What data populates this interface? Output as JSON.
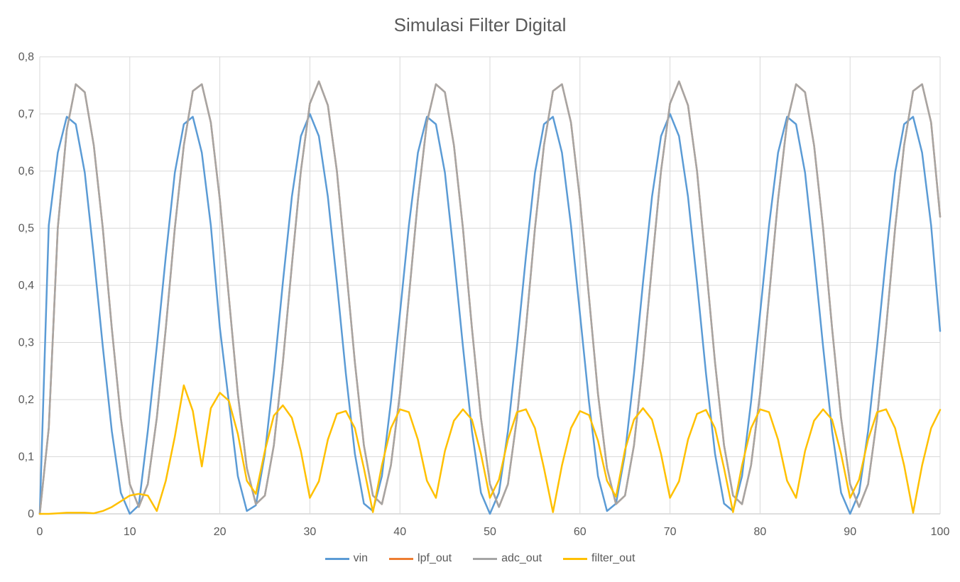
{
  "chart_data": {
    "type": "line",
    "title": "Simulasi Filter Digital",
    "xlabel": "",
    "ylabel": "",
    "xlim": [
      0,
      100
    ],
    "ylim": [
      0,
      0.8
    ],
    "x_ticks": [
      "0",
      "10",
      "20",
      "30",
      "40",
      "50",
      "60",
      "70",
      "80",
      "90",
      "100"
    ],
    "y_ticks": [
      "0",
      "0,1",
      "0,2",
      "0,3",
      "0,4",
      "0,5",
      "0,6",
      "0,7",
      "0,8"
    ],
    "grid": true,
    "legend_position": "bottom",
    "series": [
      {
        "name": "vin",
        "color": "#5B9BD5",
        "values": [
          0,
          0.505,
          0.632,
          0.695,
          0.682,
          0.597,
          0.451,
          0.293,
          0.145,
          0.037,
          0.0,
          0.015,
          0.145,
          0.293,
          0.451,
          0.597,
          0.682,
          0.695,
          0.632,
          0.505,
          0.326,
          0.196,
          0.066,
          0.005,
          0.015,
          0.105,
          0.245,
          0.405,
          0.555,
          0.661,
          0.7,
          0.661,
          0.555,
          0.405,
          0.245,
          0.105,
          0.018,
          0.005,
          0.066,
          0.196,
          0.35,
          0.505,
          0.632,
          0.695,
          0.682,
          0.597,
          0.451,
          0.293,
          0.145,
          0.037,
          0.0,
          0.037,
          0.145,
          0.293,
          0.451,
          0.597,
          0.682,
          0.695,
          0.632,
          0.505,
          0.35,
          0.196,
          0.066,
          0.005,
          0.018,
          0.105,
          0.245,
          0.405,
          0.555,
          0.661,
          0.7,
          0.661,
          0.555,
          0.405,
          0.245,
          0.105,
          0.018,
          0.005,
          0.066,
          0.196,
          0.35,
          0.505,
          0.632,
          0.695,
          0.682,
          0.597,
          0.451,
          0.293,
          0.145,
          0.037,
          0.0,
          0.037,
          0.145,
          0.293,
          0.451,
          0.597,
          0.682,
          0.695,
          0.632,
          0.505,
          0.32
        ]
      },
      {
        "name": "lpf_out",
        "color": "#ED7D31",
        "values": [
          0,
          0.15,
          0.5,
          0.672,
          0.752,
          0.738,
          0.645,
          0.5,
          0.325,
          0.168,
          0.052,
          0.012,
          0.052,
          0.168,
          0.325,
          0.5,
          0.645,
          0.74,
          0.752,
          0.685,
          0.55,
          0.38,
          0.21,
          0.08,
          0.017,
          0.032,
          0.12,
          0.265,
          0.435,
          0.6,
          0.718,
          0.757,
          0.715,
          0.6,
          0.435,
          0.265,
          0.12,
          0.032,
          0.017,
          0.085,
          0.21,
          0.38,
          0.55,
          0.685,
          0.752,
          0.738,
          0.645,
          0.5,
          0.325,
          0.168,
          0.052,
          0.012,
          0.052,
          0.168,
          0.325,
          0.5,
          0.645,
          0.74,
          0.752,
          0.685,
          0.55,
          0.38,
          0.21,
          0.08,
          0.017,
          0.032,
          0.12,
          0.265,
          0.435,
          0.6,
          0.718,
          0.757,
          0.715,
          0.6,
          0.435,
          0.265,
          0.12,
          0.032,
          0.017,
          0.085,
          0.21,
          0.38,
          0.55,
          0.685,
          0.752,
          0.738,
          0.645,
          0.5,
          0.325,
          0.168,
          0.052,
          0.012,
          0.052,
          0.168,
          0.325,
          0.5,
          0.645,
          0.74,
          0.752,
          0.685,
          0.52
        ]
      },
      {
        "name": "adc_out",
        "color": "#A5A5A5",
        "values": [
          0,
          0.15,
          0.5,
          0.672,
          0.752,
          0.738,
          0.645,
          0.5,
          0.325,
          0.168,
          0.052,
          0.012,
          0.052,
          0.168,
          0.325,
          0.5,
          0.645,
          0.74,
          0.752,
          0.685,
          0.55,
          0.38,
          0.21,
          0.08,
          0.017,
          0.032,
          0.12,
          0.265,
          0.435,
          0.6,
          0.718,
          0.757,
          0.715,
          0.6,
          0.435,
          0.265,
          0.12,
          0.032,
          0.017,
          0.085,
          0.21,
          0.38,
          0.55,
          0.685,
          0.752,
          0.738,
          0.645,
          0.5,
          0.325,
          0.168,
          0.052,
          0.012,
          0.052,
          0.168,
          0.325,
          0.5,
          0.645,
          0.74,
          0.752,
          0.685,
          0.55,
          0.38,
          0.21,
          0.08,
          0.017,
          0.032,
          0.12,
          0.265,
          0.435,
          0.6,
          0.718,
          0.757,
          0.715,
          0.6,
          0.435,
          0.265,
          0.12,
          0.032,
          0.017,
          0.085,
          0.21,
          0.38,
          0.55,
          0.685,
          0.752,
          0.738,
          0.645,
          0.5,
          0.325,
          0.168,
          0.052,
          0.012,
          0.052,
          0.168,
          0.325,
          0.5,
          0.645,
          0.74,
          0.752,
          0.685,
          0.52
        ]
      },
      {
        "name": "filter_out",
        "color": "#FFC000",
        "values": [
          0,
          0,
          0.001,
          0.002,
          0.002,
          0.002,
          0.001,
          0.005,
          0.012,
          0.022,
          0.032,
          0.035,
          0.032,
          0.005,
          0.058,
          0.135,
          0.225,
          0.18,
          0.083,
          0.185,
          0.212,
          0.198,
          0.14,
          0.058,
          0.035,
          0.11,
          0.172,
          0.19,
          0.168,
          0.11,
          0.028,
          0.057,
          0.13,
          0.175,
          0.18,
          0.15,
          0.08,
          0.003,
          0.085,
          0.15,
          0.183,
          0.178,
          0.13,
          0.058,
          0.028,
          0.11,
          0.163,
          0.183,
          0.165,
          0.105,
          0.028,
          0.06,
          0.13,
          0.178,
          0.183,
          0.15,
          0.08,
          0.003,
          0.085,
          0.15,
          0.18,
          0.173,
          0.128,
          0.058,
          0.03,
          0.112,
          0.165,
          0.185,
          0.165,
          0.105,
          0.028,
          0.057,
          0.13,
          0.175,
          0.182,
          0.15,
          0.08,
          0.003,
          0.085,
          0.15,
          0.183,
          0.178,
          0.13,
          0.058,
          0.028,
          0.11,
          0.163,
          0.183,
          0.165,
          0.105,
          0.028,
          0.06,
          0.13,
          0.178,
          0.183,
          0.15,
          0.085,
          0.002,
          0.085,
          0.15,
          0.182
        ]
      }
    ]
  }
}
